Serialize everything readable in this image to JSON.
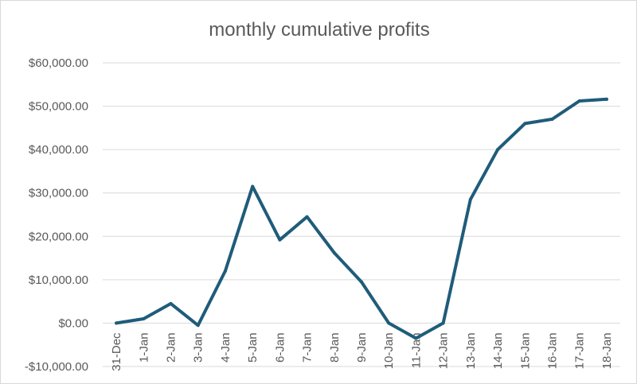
{
  "chart_data": {
    "type": "line",
    "title": "monthly cumulative profits",
    "xlabel": "",
    "ylabel": "",
    "categories": [
      "31-Dec",
      "1-Jan",
      "2-Jan",
      "3-Jan",
      "4-Jan",
      "5-Jan",
      "6-Jan",
      "7-Jan",
      "8-Jan",
      "9-Jan",
      "10-Jan",
      "11-Jan",
      "12-Jan",
      "13-Jan",
      "14-Jan",
      "15-Jan",
      "16-Jan",
      "17-Jan",
      "18-Jan"
    ],
    "series": [
      {
        "name": "cumulative profits",
        "color": "#1f5c7a",
        "values": [
          0,
          1000,
          4500,
          -500,
          12000,
          31500,
          19200,
          24500,
          16200,
          9500,
          0,
          -3500,
          0,
          28500,
          40000,
          46000,
          47000,
          51200,
          51600
        ]
      }
    ],
    "ylim": [
      -10000,
      60000
    ],
    "yticks": [
      -10000,
      0,
      10000,
      20000,
      30000,
      40000,
      50000,
      60000
    ],
    "ytick_labels": [
      "-$10,000.00",
      "$0.00",
      "$10,000.00",
      "$20,000.00",
      "$30,000.00",
      "$40,000.00",
      "$50,000.00",
      "$60,000.00"
    ],
    "grid": true,
    "legend": "none"
  }
}
